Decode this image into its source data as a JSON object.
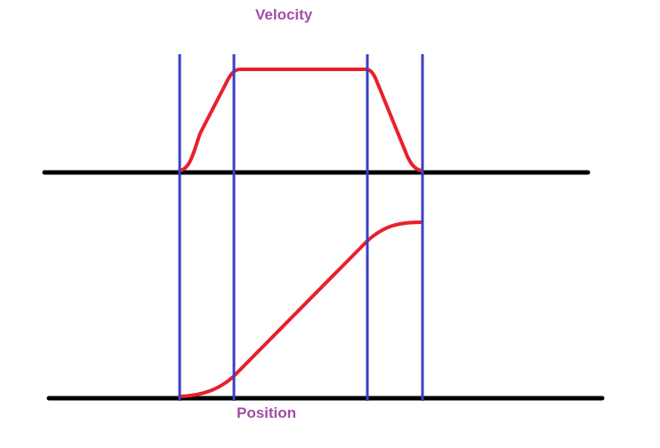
{
  "labels": {
    "velocity": "Velocity",
    "position": "Position"
  },
  "colors": {
    "label": "#a54ca8",
    "axis": "#000000",
    "curve": "#e8202c",
    "divider": "#3a3fc4",
    "background": "#ffffff"
  }
}
